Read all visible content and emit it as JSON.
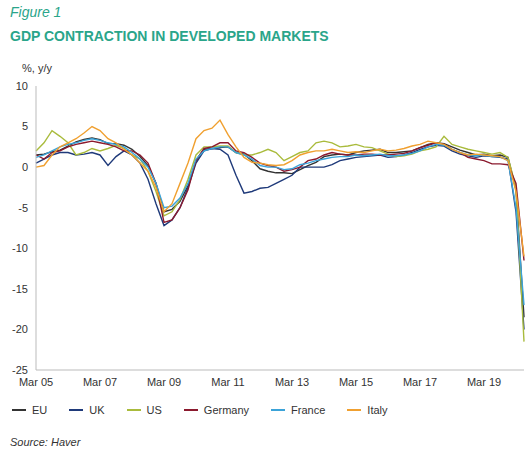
{
  "chart_data": {
    "type": "line",
    "title": "GDP CONTRACTION IN DEVELOPED MARKETS",
    "annotations": [
      "Figure 1",
      "Source: Haver"
    ],
    "y_label": "%, y/y",
    "categories": [
      "Mar 05",
      null,
      null,
      null,
      null,
      null,
      null,
      null,
      "Mar 07",
      null,
      null,
      null,
      null,
      null,
      null,
      null,
      "Mar 09",
      null,
      null,
      null,
      null,
      null,
      null,
      null,
      "Mar 11",
      null,
      null,
      null,
      null,
      null,
      null,
      null,
      "Mar 13",
      null,
      null,
      null,
      null,
      null,
      null,
      null,
      "Mar 15",
      null,
      null,
      null,
      null,
      null,
      null,
      null,
      "Mar 17",
      null,
      null,
      null,
      null,
      null,
      null,
      null,
      "Mar 19",
      null,
      null,
      null,
      null,
      null
    ],
    "ylim": [
      -25,
      10
    ],
    "yticks": [
      -25,
      -20,
      -15,
      -10,
      -5,
      0,
      5,
      10
    ],
    "grid": false,
    "legend": "bottom",
    "series": [
      {
        "name": "EU",
        "color": "#333333",
        "values": [
          1.5,
          1.6,
          1.9,
          2.1,
          2.6,
          3.1,
          3.4,
          3.6,
          3.4,
          2.9,
          2.9,
          2.7,
          2.2,
          1.3,
          0.2,
          -2.0,
          -5.5,
          -5.2,
          -4.2,
          -2.3,
          0.8,
          2.2,
          2.3,
          2.4,
          2.5,
          1.8,
          1.6,
          0.8,
          -0.2,
          -0.5,
          -0.7,
          -0.7,
          -0.8,
          -0.3,
          0.2,
          0.6,
          1.3,
          1.5,
          1.6,
          1.5,
          1.8,
          2.0,
          2.1,
          2.2,
          1.8,
          1.8,
          1.9,
          2.0,
          2.4,
          2.8,
          3.0,
          2.9,
          2.5,
          2.1,
          1.8,
          1.5,
          1.6,
          1.4,
          1.5,
          1.2,
          -2.8,
          -18.5
        ]
      },
      {
        "name": "UK",
        "color": "#1f3a7a",
        "values": [
          0.5,
          1.0,
          1.5,
          1.8,
          1.8,
          1.5,
          1.6,
          1.8,
          1.5,
          0.2,
          1.3,
          2.0,
          1.5,
          0.5,
          -1.5,
          -4.5,
          -7.2,
          -6.5,
          -5.0,
          -2.5,
          0.5,
          2.0,
          2.3,
          2.2,
          1.5,
          -1.0,
          -3.2,
          -3.0,
          -2.6,
          -2.5,
          -2.0,
          -1.5,
          -1.0,
          0.0,
          0.0,
          0.0,
          0.0,
          0.3,
          0.8,
          1.0,
          1.2,
          1.3,
          1.4,
          1.5,
          1.2,
          1.3,
          1.5,
          1.8,
          2.2,
          2.5,
          2.7,
          2.6,
          2.0,
          1.6,
          1.4,
          1.2,
          1.4,
          1.3,
          1.2,
          1.0,
          -5.5,
          -20.0
        ]
      },
      {
        "name": "US",
        "color": "#a9bb3c",
        "values": [
          2.0,
          3.0,
          4.5,
          3.8,
          3.0,
          1.5,
          1.8,
          2.3,
          2.0,
          2.3,
          2.7,
          2.3,
          1.5,
          1.0,
          -0.5,
          -3.0,
          -6.0,
          -5.5,
          -4.0,
          -1.5,
          1.5,
          2.5,
          2.5,
          2.6,
          2.6,
          1.8,
          1.5,
          1.5,
          1.8,
          2.2,
          1.8,
          0.8,
          1.3,
          1.8,
          2.0,
          3.0,
          3.2,
          3.0,
          2.5,
          2.6,
          2.8,
          2.5,
          2.4,
          2.0,
          1.6,
          1.3,
          1.4,
          1.6,
          2.0,
          2.2,
          2.5,
          3.8,
          2.8,
          2.5,
          2.2,
          2.0,
          1.8,
          1.6,
          1.8,
          1.2,
          -2.5,
          -21.5
        ]
      },
      {
        "name": "Germany",
        "color": "#8b1a2e",
        "values": [
          1.5,
          1.0,
          1.8,
          2.0,
          2.5,
          2.8,
          3.0,
          3.2,
          3.0,
          2.8,
          2.5,
          2.0,
          2.0,
          1.5,
          0.5,
          -2.0,
          -6.8,
          -6.5,
          -5.0,
          -2.8,
          0.8,
          2.3,
          2.5,
          3.0,
          3.0,
          2.0,
          1.8,
          1.2,
          0.5,
          0.2,
          0.0,
          -0.5,
          -0.3,
          0.0,
          0.8,
          1.0,
          1.5,
          1.8,
          1.6,
          1.5,
          1.5,
          1.6,
          1.6,
          1.5,
          1.5,
          1.6,
          1.7,
          2.0,
          2.4,
          2.7,
          3.0,
          2.8,
          2.2,
          1.8,
          1.2,
          1.0,
          0.8,
          0.4,
          0.4,
          0.3,
          -2.0,
          -11.5
        ]
      },
      {
        "name": "France",
        "color": "#3ba3d8",
        "values": [
          1.2,
          1.5,
          2.0,
          2.5,
          2.8,
          3.0,
          3.3,
          3.5,
          3.3,
          3.0,
          2.8,
          2.5,
          1.8,
          1.0,
          0.0,
          -2.0,
          -5.0,
          -4.8,
          -3.8,
          -2.0,
          1.0,
          2.0,
          2.3,
          2.5,
          2.5,
          1.8,
          1.5,
          1.0,
          0.2,
          0.0,
          0.0,
          -0.3,
          -0.2,
          0.3,
          0.5,
          0.8,
          1.0,
          1.2,
          1.3,
          1.3,
          1.5,
          1.4,
          1.5,
          1.6,
          1.4,
          1.4,
          1.5,
          1.7,
          2.0,
          2.5,
          2.8,
          2.7,
          2.2,
          1.8,
          1.5,
          1.4,
          1.5,
          1.3,
          1.3,
          0.8,
          -5.0,
          -17.0
        ]
      },
      {
        "name": "Italy",
        "color": "#f0a030",
        "values": [
          0.0,
          0.2,
          1.5,
          2.5,
          3.0,
          3.5,
          4.2,
          5.0,
          4.5,
          3.5,
          3.0,
          2.2,
          1.5,
          0.5,
          -0.5,
          -2.5,
          -5.5,
          -4.5,
          -2.0,
          0.5,
          3.5,
          4.5,
          4.8,
          5.8,
          4.0,
          2.5,
          1.2,
          0.6,
          0.5,
          0.3,
          0.2,
          0.3,
          0.8,
          1.5,
          1.8,
          2.0,
          2.0,
          2.2,
          2.0,
          1.8,
          1.9,
          1.8,
          2.0,
          2.2,
          2.0,
          2.1,
          2.3,
          2.6,
          2.8,
          3.2,
          3.0,
          2.8,
          2.2,
          1.8,
          1.5,
          1.6,
          1.5,
          1.4,
          1.3,
          0.8,
          -3.0,
          -11.0
        ]
      }
    ]
  }
}
